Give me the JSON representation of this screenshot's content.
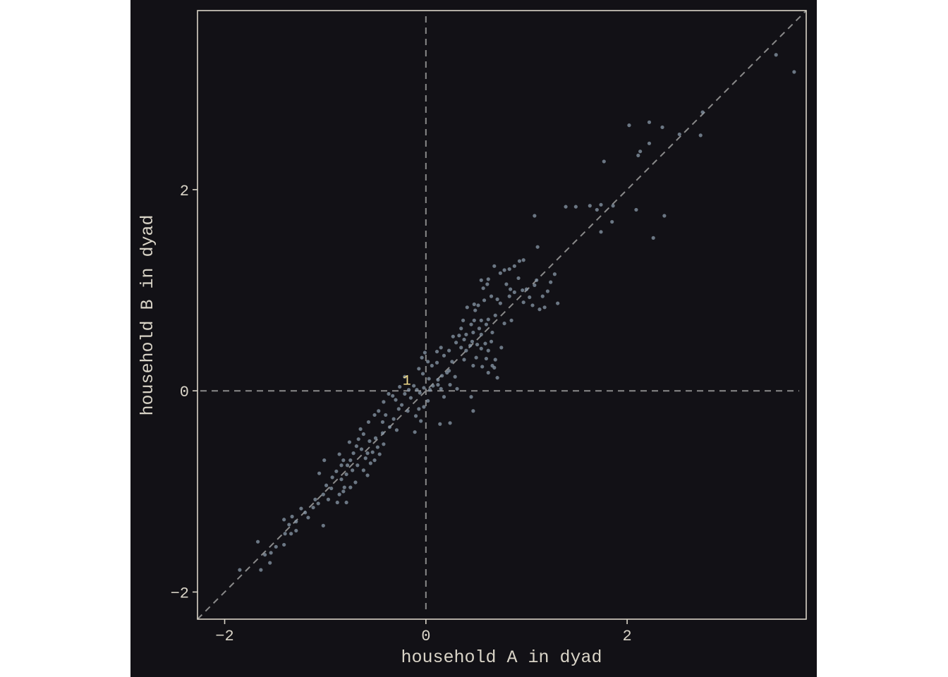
{
  "colors": {
    "background": "#121116",
    "frame": "#d9d4c7",
    "text": "#d9d4c7",
    "points": "#8a9aaa",
    "reference_lines": "#8a8a8a",
    "annotation": "#f2dc8a"
  },
  "chart_data": {
    "type": "scatter",
    "title": "",
    "xlabel": "household A in dyad",
    "ylabel": "household B in dyad",
    "xlim": [
      -2.27,
      3.78
    ],
    "ylim": [
      -2.27,
      3.78
    ],
    "x_ticks": [
      {
        "value": -2,
        "label": "−2"
      },
      {
        "value": 0,
        "label": "0"
      },
      {
        "value": 2,
        "label": "2"
      }
    ],
    "y_ticks": [
      {
        "value": -2,
        "label": "−2"
      },
      {
        "value": 0,
        "label": "0"
      },
      {
        "value": 2,
        "label": "2"
      }
    ],
    "reference_lines": [
      {
        "kind": "identity",
        "style": "dashed"
      },
      {
        "kind": "vertical",
        "value": 0,
        "style": "dashed"
      },
      {
        "kind": "horizontal",
        "value": 0,
        "style": "dashed"
      }
    ],
    "annotations": [
      {
        "text": "1",
        "x": -0.19,
        "y": 0.06
      }
    ],
    "points": [
      [
        3.66,
        3.17
      ],
      [
        3.48,
        3.34
      ],
      [
        2.75,
        2.77
      ],
      [
        2.73,
        2.54
      ],
      [
        2.52,
        2.55
      ],
      [
        2.35,
        2.62
      ],
      [
        2.22,
        2.67
      ],
      [
        2.22,
        2.46
      ],
      [
        2.13,
        2.38
      ],
      [
        2.11,
        2.34
      ],
      [
        2.02,
        2.64
      ],
      [
        1.77,
        2.28
      ],
      [
        2.37,
        1.74
      ],
      [
        2.26,
        1.52
      ],
      [
        2.09,
        1.8
      ],
      [
        1.86,
        1.84
      ],
      [
        1.85,
        1.68
      ],
      [
        1.74,
        1.85
      ],
      [
        1.7,
        1.8
      ],
      [
        1.63,
        1.84
      ],
      [
        1.74,
        1.58
      ],
      [
        1.49,
        1.83
      ],
      [
        1.39,
        1.83
      ],
      [
        1.08,
        1.74
      ],
      [
        1.11,
        1.43
      ],
      [
        0.97,
        1.3
      ],
      [
        0.93,
        1.29
      ],
      [
        0.88,
        1.24
      ],
      [
        0.83,
        1.21
      ],
      [
        0.78,
        1.2
      ],
      [
        0.74,
        1.17
      ],
      [
        0.68,
        1.24
      ],
      [
        1.28,
        1.16
      ],
      [
        1.24,
        1.08
      ],
      [
        1.21,
        0.99
      ],
      [
        1.1,
        1.1
      ],
      [
        1.16,
        0.94
      ],
      [
        1.31,
        0.87
      ],
      [
        1.13,
        0.81
      ],
      [
        1.18,
        0.83
      ],
      [
        1.06,
        0.85
      ],
      [
        1.03,
        0.93
      ],
      [
        0.97,
        0.88
      ],
      [
        1.08,
        1.05
      ],
      [
        0.96,
        1.0
      ],
      [
        0.84,
        1.01
      ],
      [
        0.8,
        1.06
      ],
      [
        0.83,
        0.94
      ],
      [
        0.62,
        1.11
      ],
      [
        0.61,
        1.06
      ],
      [
        0.55,
        1.1
      ],
      [
        0.57,
        1.02
      ],
      [
        0.65,
        0.94
      ],
      [
        0.58,
        0.9
      ],
      [
        0.52,
        0.85
      ],
      [
        0.48,
        0.86
      ],
      [
        0.41,
        0.83
      ],
      [
        0.49,
        0.8
      ],
      [
        0.71,
        0.91
      ],
      [
        0.74,
        0.87
      ],
      [
        0.69,
        0.75
      ],
      [
        0.62,
        0.71
      ],
      [
        0.78,
        0.67
      ],
      [
        0.85,
        0.7
      ],
      [
        0.6,
        0.66
      ],
      [
        0.55,
        0.7
      ],
      [
        0.45,
        0.66
      ],
      [
        0.48,
        0.7
      ],
      [
        0.37,
        0.7
      ],
      [
        0.53,
        0.62
      ],
      [
        0.55,
        0.56
      ],
      [
        0.47,
        0.58
      ],
      [
        0.4,
        0.56
      ],
      [
        0.33,
        0.55
      ],
      [
        0.27,
        0.54
      ],
      [
        0.38,
        0.51
      ],
      [
        0.46,
        0.49
      ],
      [
        0.51,
        0.46
      ],
      [
        0.55,
        0.42
      ],
      [
        0.59,
        0.47
      ],
      [
        0.65,
        0.49
      ],
      [
        0.62,
        0.4
      ],
      [
        0.75,
        0.43
      ],
      [
        0.5,
        0.33
      ],
      [
        0.56,
        0.24
      ],
      [
        0.62,
        0.18
      ],
      [
        0.66,
        0.25
      ],
      [
        0.6,
        0.32
      ],
      [
        0.69,
        0.31
      ],
      [
        0.68,
        0.23
      ],
      [
        0.71,
        0.13
      ],
      [
        0.47,
        0.25
      ],
      [
        0.4,
        0.4
      ],
      [
        0.35,
        0.43
      ],
      [
        0.3,
        0.48
      ],
      [
        0.23,
        0.4
      ],
      [
        0.26,
        0.29
      ],
      [
        0.23,
        0.2
      ],
      [
        0.15,
        0.43
      ],
      [
        0.18,
        0.35
      ],
      [
        0.11,
        0.39
      ],
      [
        0.11,
        0.28
      ],
      [
        0.06,
        0.25
      ],
      [
        0.02,
        0.29
      ],
      [
        -0.01,
        0.38
      ],
      [
        -0.04,
        0.33
      ],
      [
        -0.07,
        0.22
      ],
      [
        -0.03,
        0.17
      ],
      [
        0.03,
        0.12
      ],
      [
        0.07,
        0.05
      ],
      [
        0.12,
        0.11
      ],
      [
        0.16,
        0.15
      ],
      [
        0.21,
        0.18
      ],
      [
        0.15,
        0.02
      ],
      [
        0.18,
        -0.06
      ],
      [
        0.24,
        0.06
      ],
      [
        0.31,
        0.02
      ],
      [
        0.45,
        -0.06
      ],
      [
        0.47,
        -0.2
      ],
      [
        0.24,
        -0.32
      ],
      [
        0.14,
        -0.33
      ],
      [
        -0.02,
        -0.16
      ],
      [
        0.02,
        -0.1
      ],
      [
        0.04,
        0.01
      ],
      [
        -0.02,
        0.03
      ],
      [
        -0.06,
        -0.02
      ],
      [
        -0.09,
        0.01
      ],
      [
        -0.12,
        0.05
      ],
      [
        -0.17,
        0.01
      ],
      [
        -0.21,
        -0.03
      ],
      [
        -0.15,
        -0.07
      ],
      [
        -0.05,
        -0.3
      ],
      [
        -0.1,
        -0.25
      ],
      [
        -0.18,
        -0.2
      ],
      [
        -0.24,
        -0.14
      ],
      [
        -0.3,
        -0.09
      ],
      [
        -0.37,
        -0.03
      ],
      [
        -0.42,
        -0.11
      ],
      [
        -0.27,
        -0.18
      ],
      [
        -0.32,
        -0.28
      ],
      [
        -0.4,
        -0.24
      ],
      [
        -0.47,
        -0.2
      ],
      [
        -0.29,
        -0.39
      ],
      [
        -0.36,
        -0.36
      ],
      [
        -0.43,
        -0.31
      ],
      [
        -0.51,
        -0.24
      ],
      [
        -0.57,
        -0.31
      ],
      [
        -0.43,
        -0.42
      ],
      [
        -0.5,
        -0.47
      ],
      [
        -0.56,
        -0.5
      ],
      [
        -0.62,
        -0.43
      ],
      [
        -0.67,
        -0.48
      ],
      [
        -0.69,
        -0.55
      ],
      [
        -0.64,
        -0.58
      ],
      [
        -0.58,
        -0.62
      ],
      [
        -0.53,
        -0.61
      ],
      [
        -0.48,
        -0.56
      ],
      [
        -0.42,
        -0.53
      ],
      [
        -0.46,
        -0.63
      ],
      [
        -0.6,
        -0.67
      ],
      [
        -0.55,
        -0.72
      ],
      [
        -0.51,
        -0.69
      ],
      [
        -0.72,
        -0.62
      ],
      [
        -0.75,
        -0.69
      ],
      [
        -0.68,
        -0.74
      ],
      [
        -0.73,
        -0.79
      ],
      [
        -0.78,
        -0.74
      ],
      [
        -0.82,
        -0.69
      ],
      [
        -0.86,
        -0.63
      ],
      [
        -0.79,
        -0.83
      ],
      [
        -0.62,
        -0.79
      ],
      [
        -0.58,
        -0.84
      ],
      [
        -0.7,
        -0.91
      ],
      [
        -0.75,
        -0.96
      ],
      [
        -0.84,
        -0.88
      ],
      [
        -0.89,
        -0.8
      ],
      [
        -0.93,
        -0.86
      ],
      [
        -0.81,
        -0.96
      ],
      [
        -0.86,
        -1.03
      ],
      [
        -0.94,
        -0.97
      ],
      [
        -0.99,
        -0.94
      ],
      [
        -1.01,
        -0.69
      ],
      [
        -1.06,
        -0.82
      ],
      [
        -0.88,
        -1.11
      ],
      [
        -0.97,
        -1.08
      ],
      [
        -1.02,
        -1.03
      ],
      [
        -1.07,
        -1.12
      ],
      [
        -1.1,
        -1.08
      ],
      [
        -1.12,
        -1.16
      ],
      [
        -1.2,
        -1.21
      ],
      [
        -1.24,
        -1.17
      ],
      [
        -1.17,
        -1.26
      ],
      [
        -0.79,
        -1.11
      ],
      [
        -0.82,
        -1.0
      ],
      [
        -1.02,
        -1.34
      ],
      [
        -1.29,
        -1.3
      ],
      [
        -1.33,
        -1.25
      ],
      [
        -1.36,
        -1.33
      ],
      [
        -1.41,
        -1.28
      ],
      [
        -1.29,
        -1.39
      ],
      [
        -1.34,
        -1.42
      ],
      [
        -1.4,
        -1.42
      ],
      [
        -1.41,
        -1.53
      ],
      [
        -1.49,
        -1.55
      ],
      [
        -1.54,
        -1.61
      ],
      [
        -1.67,
        -1.5
      ],
      [
        -1.6,
        -1.63
      ],
      [
        -1.55,
        -1.71
      ],
      [
        -1.64,
        -1.78
      ],
      [
        -1.85,
        -1.78
      ],
      [
        -0.11,
        -0.41
      ],
      [
        -0.07,
        -0.18
      ],
      [
        0.12,
        0.06
      ],
      [
        0.29,
        0.14
      ],
      [
        0.38,
        0.31
      ],
      [
        0.44,
        0.45
      ],
      [
        0.35,
        0.62
      ],
      [
        0.66,
        0.58
      ],
      [
        0.88,
        0.98
      ],
      [
        1.0,
        1.01
      ],
      [
        0.92,
        1.12
      ],
      [
        -0.21,
        0.14
      ],
      [
        -0.26,
        0.04
      ],
      [
        -0.33,
        -0.05
      ],
      [
        -0.65,
        -0.38
      ],
      [
        -0.76,
        -0.51
      ],
      [
        -0.84,
        -0.74
      ]
    ]
  }
}
